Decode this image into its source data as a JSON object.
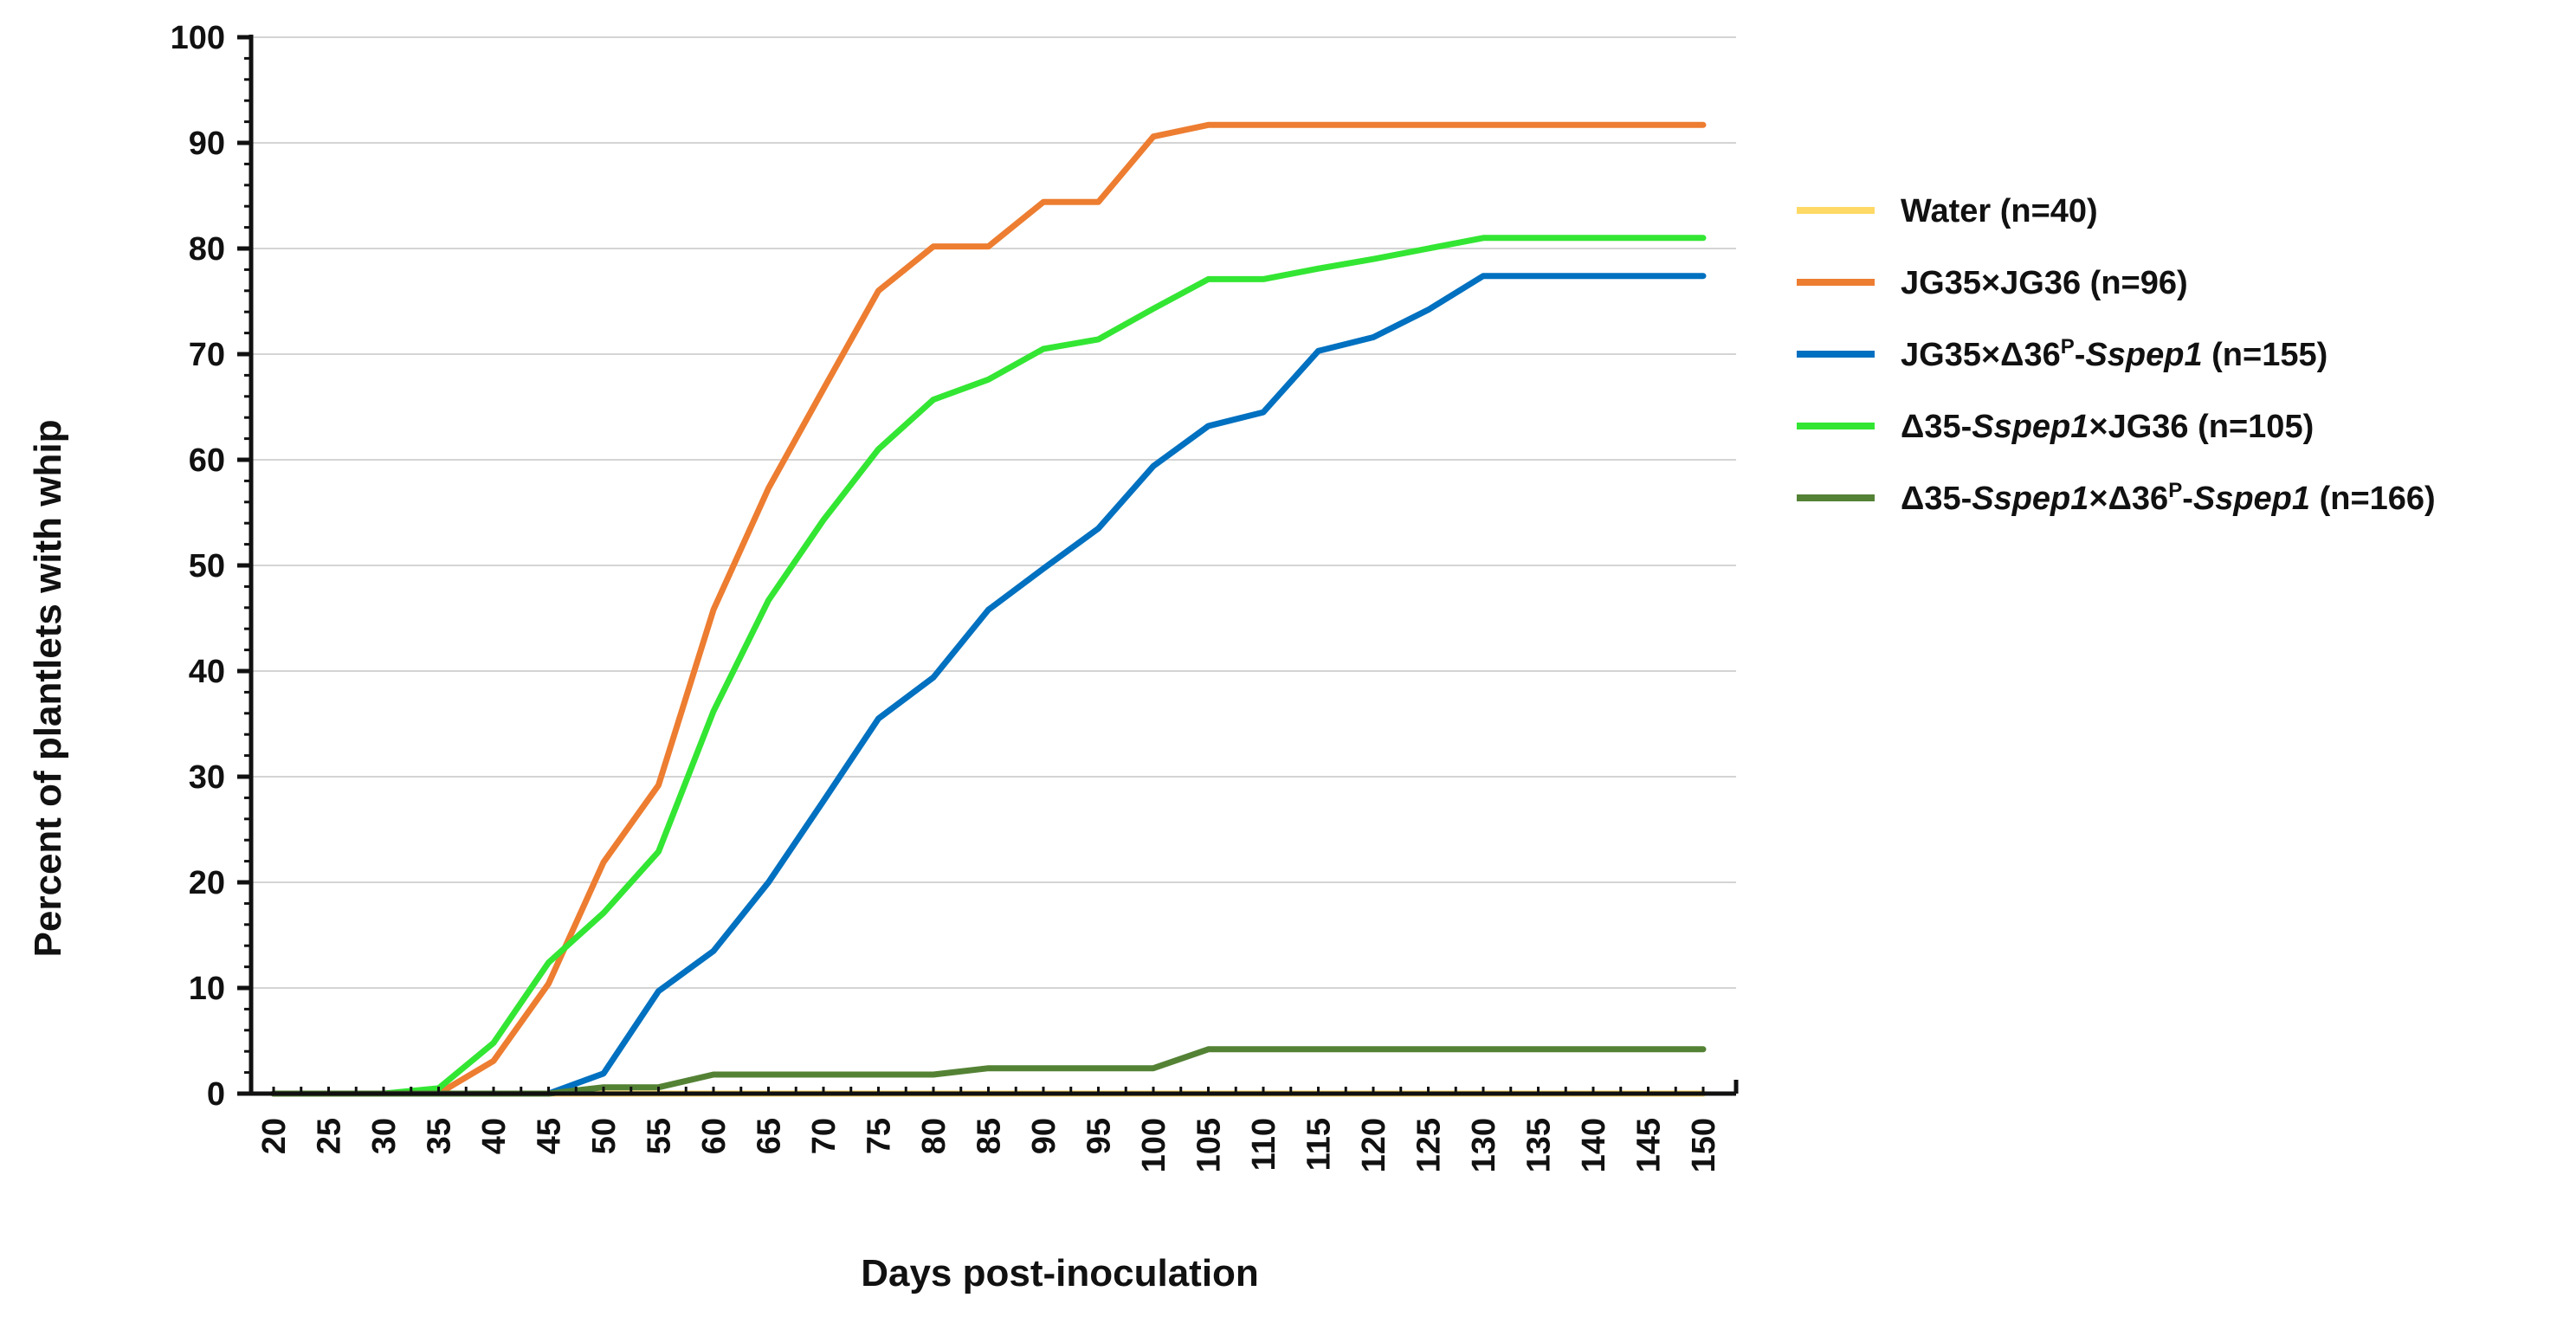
{
  "chart_data": {
    "type": "line",
    "title": "",
    "xlabel": "Days post-inoculation",
    "ylabel": "Percent of plantlets with whip",
    "ylim": [
      0,
      100
    ],
    "yticks": [
      0,
      10,
      20,
      30,
      40,
      50,
      60,
      70,
      80,
      90,
      100
    ],
    "x": [
      20,
      25,
      30,
      35,
      40,
      45,
      50,
      55,
      60,
      65,
      70,
      75,
      80,
      85,
      90,
      95,
      100,
      105,
      110,
      115,
      120,
      125,
      130,
      135,
      140,
      145,
      150
    ],
    "x_tick_labels": [
      "20",
      "25",
      "30",
      "35",
      "40",
      "45",
      "50",
      "55",
      "60",
      "65",
      "70",
      "75",
      "80",
      "85",
      "90",
      "95",
      "100",
      "105",
      "110",
      "115",
      "120",
      "125",
      "130",
      "135",
      "140",
      "145",
      "150"
    ],
    "grid": true,
    "legend_position": "right",
    "series": [
      {
        "name": "Water (n=40)",
        "legend_parts": [
          {
            "t": "Water (n=40)",
            "style": "normal"
          }
        ],
        "color": "#FFD966",
        "values": [
          0,
          0,
          0,
          0,
          0,
          0,
          0,
          0,
          0,
          0,
          0,
          0,
          0,
          0,
          0,
          0,
          0,
          0,
          0,
          0,
          0,
          0,
          0,
          0,
          0,
          0,
          0
        ]
      },
      {
        "name": "JG35×JG36 (n=96)",
        "legend_parts": [
          {
            "t": "JG35×JG36 (n=96)",
            "style": "normal"
          }
        ],
        "color": "#ED7D31",
        "values": [
          0,
          0,
          0,
          0,
          3.1,
          10.4,
          21.9,
          29.2,
          45.8,
          57.3,
          66.7,
          76.0,
          80.2,
          80.2,
          84.4,
          84.4,
          90.6,
          91.7,
          91.7,
          91.7,
          91.7,
          91.7,
          91.7,
          91.7,
          91.7,
          91.7,
          91.7
        ]
      },
      {
        "name": "JG35×Δ36P-Sspep1 (n=155)",
        "legend_parts": [
          {
            "t": "JG35×Δ36",
            "style": "normal"
          },
          {
            "t": "P",
            "style": "sup"
          },
          {
            "t": "-",
            "style": "normal"
          },
          {
            "t": "Sspep1",
            "style": "italic"
          },
          {
            "t": " (n=155)",
            "style": "normal"
          }
        ],
        "color": "#0070C0",
        "values": [
          0,
          0,
          0,
          0,
          0,
          0,
          1.9,
          9.7,
          13.5,
          20.0,
          27.7,
          35.5,
          39.4,
          45.8,
          49.7,
          53.5,
          59.4,
          63.2,
          64.5,
          70.3,
          71.6,
          74.2,
          77.4,
          77.4,
          77.4,
          77.4,
          77.4
        ]
      },
      {
        "name": "Δ35-Sspep1×JG36 (n=105)",
        "legend_parts": [
          {
            "t": "Δ35-",
            "style": "normal"
          },
          {
            "t": "Sspep1",
            "style": "italic"
          },
          {
            "t": "×JG36",
            "style": "normal"
          },
          {
            "t": " (n=105)",
            "style": "normal"
          }
        ],
        "color": "#33E633",
        "values": [
          0,
          0,
          0,
          0.5,
          4.8,
          12.4,
          17.1,
          22.9,
          36.2,
          46.7,
          54.3,
          61.0,
          65.7,
          67.6,
          70.5,
          71.4,
          74.3,
          77.1,
          77.1,
          78.1,
          79.0,
          80.0,
          81.0,
          81.0,
          81.0,
          81.0,
          81.0
        ]
      },
      {
        "name": "Δ35-Sspep1×Δ36P-Sspep1 (n=166)",
        "legend_parts": [
          {
            "t": "Δ35-",
            "style": "normal"
          },
          {
            "t": "Sspep1",
            "style": "italic"
          },
          {
            "t": "×Δ36",
            "style": "normal"
          },
          {
            "t": "P",
            "style": "sup"
          },
          {
            "t": "-",
            "style": "normal"
          },
          {
            "t": "Sspep1",
            "style": "italic"
          },
          {
            "t": " (n=166)",
            "style": "normal"
          }
        ],
        "color": "#548235",
        "values": [
          0,
          0,
          0,
          0,
          0,
          0,
          0.6,
          0.6,
          1.8,
          1.8,
          1.8,
          1.8,
          1.8,
          2.4,
          2.4,
          2.4,
          2.4,
          4.2,
          4.2,
          4.2,
          4.2,
          4.2,
          4.2,
          4.2,
          4.2,
          4.2,
          4.2
        ]
      }
    ]
  }
}
